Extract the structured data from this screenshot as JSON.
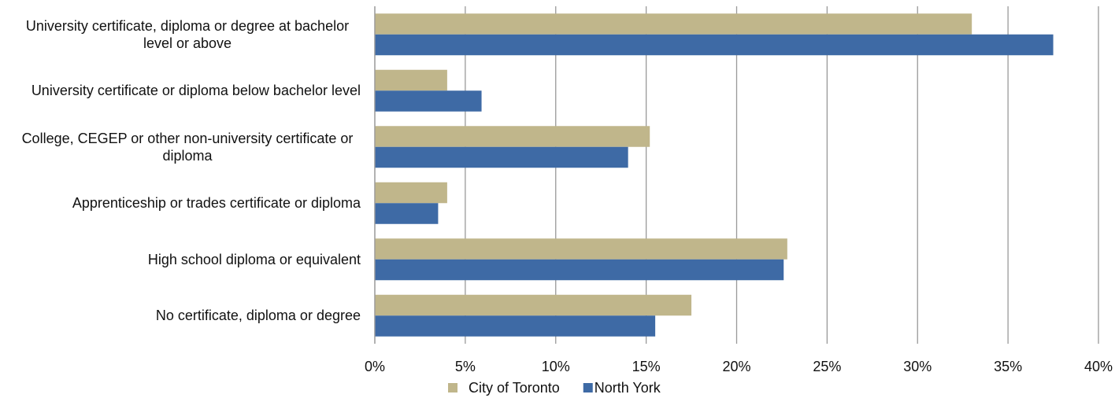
{
  "chart_data": {
    "type": "barh",
    "categories": [
      "University certificate, diploma or degree at bachelor level or above",
      "University certificate or diploma below bachelor level",
      "College, CEGEP or other non-university certificate or diploma",
      "Apprenticeship or trades certificate or diploma",
      "High school diploma or equivalent",
      "No certificate, diploma or degree"
    ],
    "series": [
      {
        "name": "City of Toronto",
        "color": "#c0b68b",
        "values": [
          33.0,
          4.0,
          15.2,
          4.0,
          22.8,
          17.5
        ]
      },
      {
        "name": "North York",
        "color": "#3e6aa5",
        "values": [
          37.5,
          5.9,
          14.0,
          3.5,
          22.6,
          15.5
        ]
      }
    ],
    "xlim": [
      0,
      40
    ],
    "xticks": [
      {
        "value": 0,
        "label": "0%"
      },
      {
        "value": 5,
        "label": "5%"
      },
      {
        "value": 10,
        "label": "10%"
      },
      {
        "value": 15,
        "label": "15%"
      },
      {
        "value": 20,
        "label": "20%"
      },
      {
        "value": 25,
        "label": "25%"
      },
      {
        "value": 30,
        "label": "30%"
      },
      {
        "value": 35,
        "label": "35%"
      },
      {
        "value": 40,
        "label": "40%"
      }
    ],
    "grid": true,
    "legend": "bottom"
  }
}
